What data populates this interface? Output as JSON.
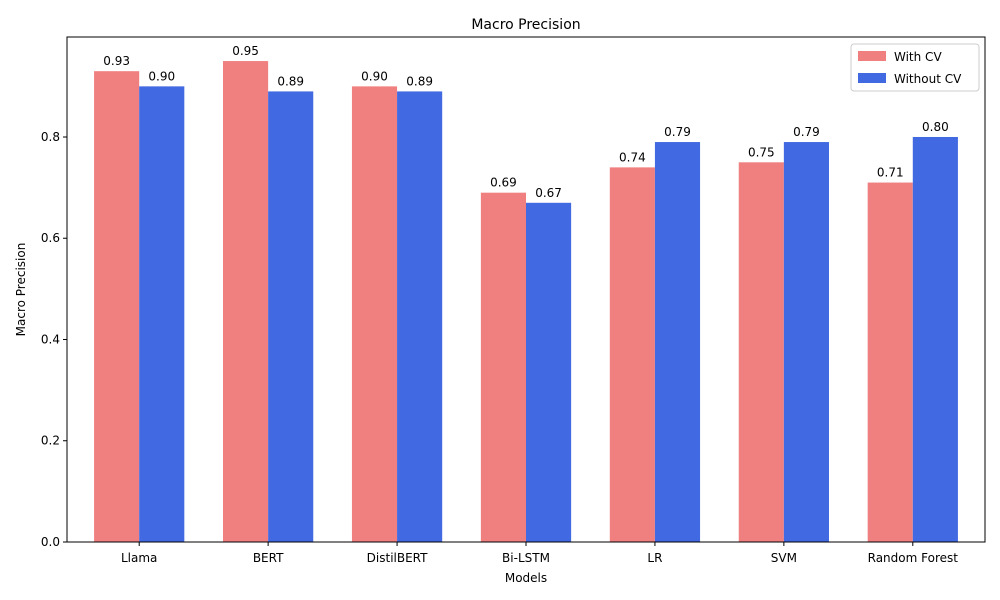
{
  "chart_data": {
    "type": "bar",
    "title": "Macro Precision",
    "xlabel": "Models",
    "ylabel": "Macro Precision",
    "categories": [
      "Llama",
      "BERT",
      "DistilBERT",
      "Bi-LSTM",
      "LR",
      "SVM",
      "Random Forest"
    ],
    "series": [
      {
        "name": "With CV",
        "color": "#f08080",
        "values": [
          0.93,
          0.95,
          0.9,
          0.69,
          0.74,
          0.75,
          0.71
        ],
        "labels": [
          "0.93",
          "0.95",
          "0.90",
          "0.69",
          "0.74",
          "0.75",
          "0.71"
        ]
      },
      {
        "name": "Without CV",
        "color": "#4169e1",
        "values": [
          0.9,
          0.89,
          0.89,
          0.67,
          0.79,
          0.79,
          0.8
        ],
        "labels": [
          "0.90",
          "0.89",
          "0.89",
          "0.67",
          "0.79",
          "0.79",
          "0.80"
        ]
      }
    ],
    "ylim": [
      0,
      0.9975
    ],
    "yticks": [
      0.0,
      0.2,
      0.4,
      0.6,
      0.8
    ],
    "ytick_labels": [
      "0.0",
      "0.2",
      "0.4",
      "0.6",
      "0.8"
    ],
    "grid": false,
    "legend_position": "top-right"
  }
}
